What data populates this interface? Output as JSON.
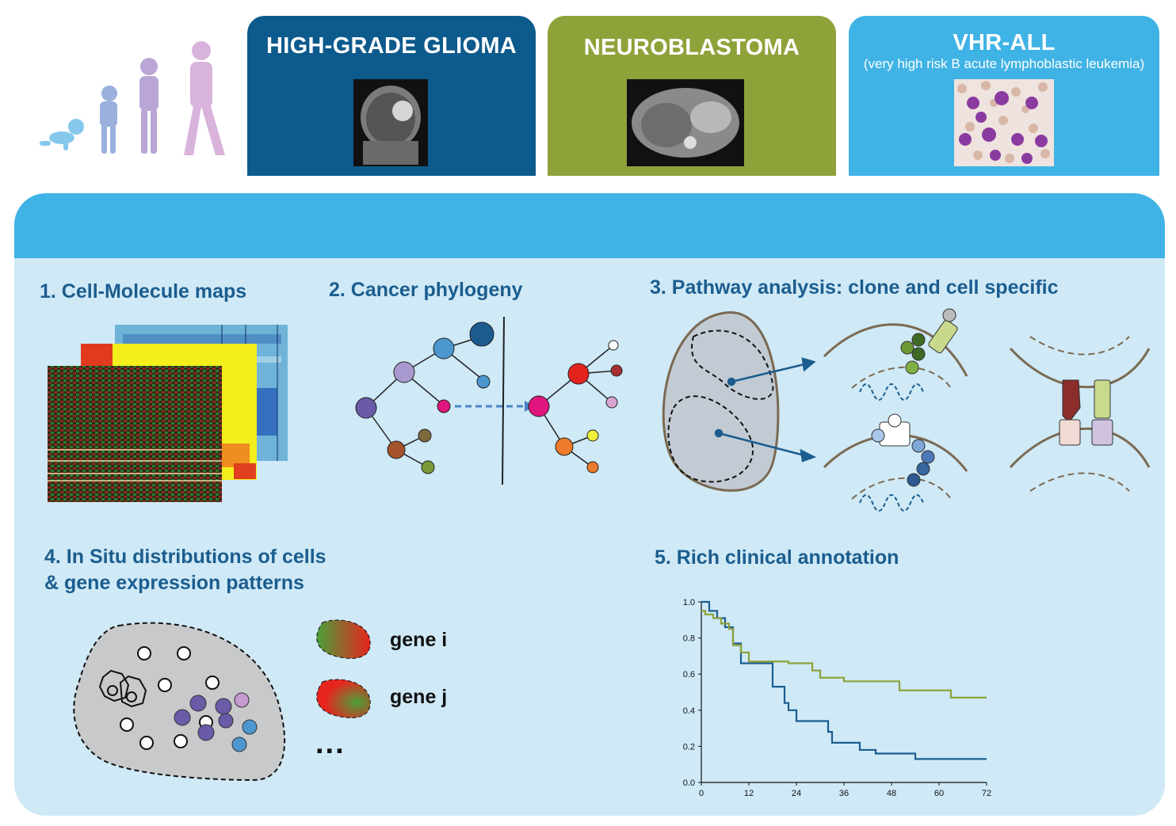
{
  "tabs": [
    {
      "title": "HIGH-GRADE GLIOMA",
      "subtitle": "",
      "color": "#0d5a8c"
    },
    {
      "title": "NEUROBLASTOMA",
      "subtitle": "",
      "color": "#8ea23a"
    },
    {
      "title": "VHR-ALL",
      "subtitle": "(very high risk B acute lymphoblastic leukemia)",
      "color": "#3fb3e5"
    }
  ],
  "sections": {
    "s1": "1. Cell-Molecule maps",
    "s2": "2. Cancer phylogeny",
    "s3": "3. Pathway analysis: clone and cell specific",
    "s4_line1": "4. In Situ distributions of cells",
    "s4_line2": "& gene expression patterns",
    "s5": "5. Rich clinical annotation"
  },
  "genes": {
    "gene_i": "gene i",
    "gene_j": "gene j",
    "ellipsis": "..."
  },
  "colors": {
    "panel_bg": "#cfe9f6",
    "band": "#3fb3e5",
    "heading": "#1b5d8f",
    "figure_silhouettes": [
      "#86c8ec",
      "#9bb0dc",
      "#b9a6d6",
      "#d8b3dc"
    ]
  },
  "chart_data": {
    "type": "line",
    "title": "",
    "xlabel": "",
    "ylabel": "",
    "xlim": [
      0,
      72
    ],
    "ylim": [
      0,
      1.0
    ],
    "x_ticks": [
      "0",
      "12",
      "24",
      "36",
      "48",
      "60",
      "72"
    ],
    "y_ticks": [
      "0.0",
      "0.2",
      "0.4",
      "0.6",
      "0.8",
      "1.0"
    ],
    "series": [
      {
        "color": "#1b5d8f",
        "x": [
          0,
          2,
          2,
          4,
          4,
          6,
          6,
          8,
          8,
          10,
          10,
          18,
          18,
          21,
          21,
          22,
          22,
          24,
          24,
          32,
          32,
          33,
          33,
          35,
          35,
          40,
          40,
          44,
          44,
          54,
          54,
          72
        ],
        "y": [
          1.0,
          1.0,
          0.95,
          0.95,
          0.91,
          0.91,
          0.86,
          0.86,
          0.77,
          0.77,
          0.66,
          0.66,
          0.53,
          0.53,
          0.44,
          0.44,
          0.4,
          0.4,
          0.34,
          0.34,
          0.28,
          0.28,
          0.22,
          0.22,
          0.22,
          0.22,
          0.18,
          0.18,
          0.16,
          0.16,
          0.13,
          0.13
        ]
      },
      {
        "color": "#8ea23a",
        "x": [
          0,
          1,
          1,
          3,
          3,
          5,
          5,
          7,
          7,
          8,
          8,
          10,
          10,
          12,
          12,
          18,
          18,
          22,
          22,
          28,
          28,
          30,
          30,
          36,
          36,
          50,
          50,
          63,
          63,
          72
        ],
        "y": [
          0.95,
          0.95,
          0.93,
          0.93,
          0.91,
          0.91,
          0.88,
          0.88,
          0.85,
          0.85,
          0.76,
          0.76,
          0.72,
          0.72,
          0.67,
          0.67,
          0.67,
          0.67,
          0.66,
          0.66,
          0.62,
          0.62,
          0.58,
          0.58,
          0.56,
          0.56,
          0.51,
          0.51,
          0.47,
          0.47
        ]
      }
    ]
  }
}
